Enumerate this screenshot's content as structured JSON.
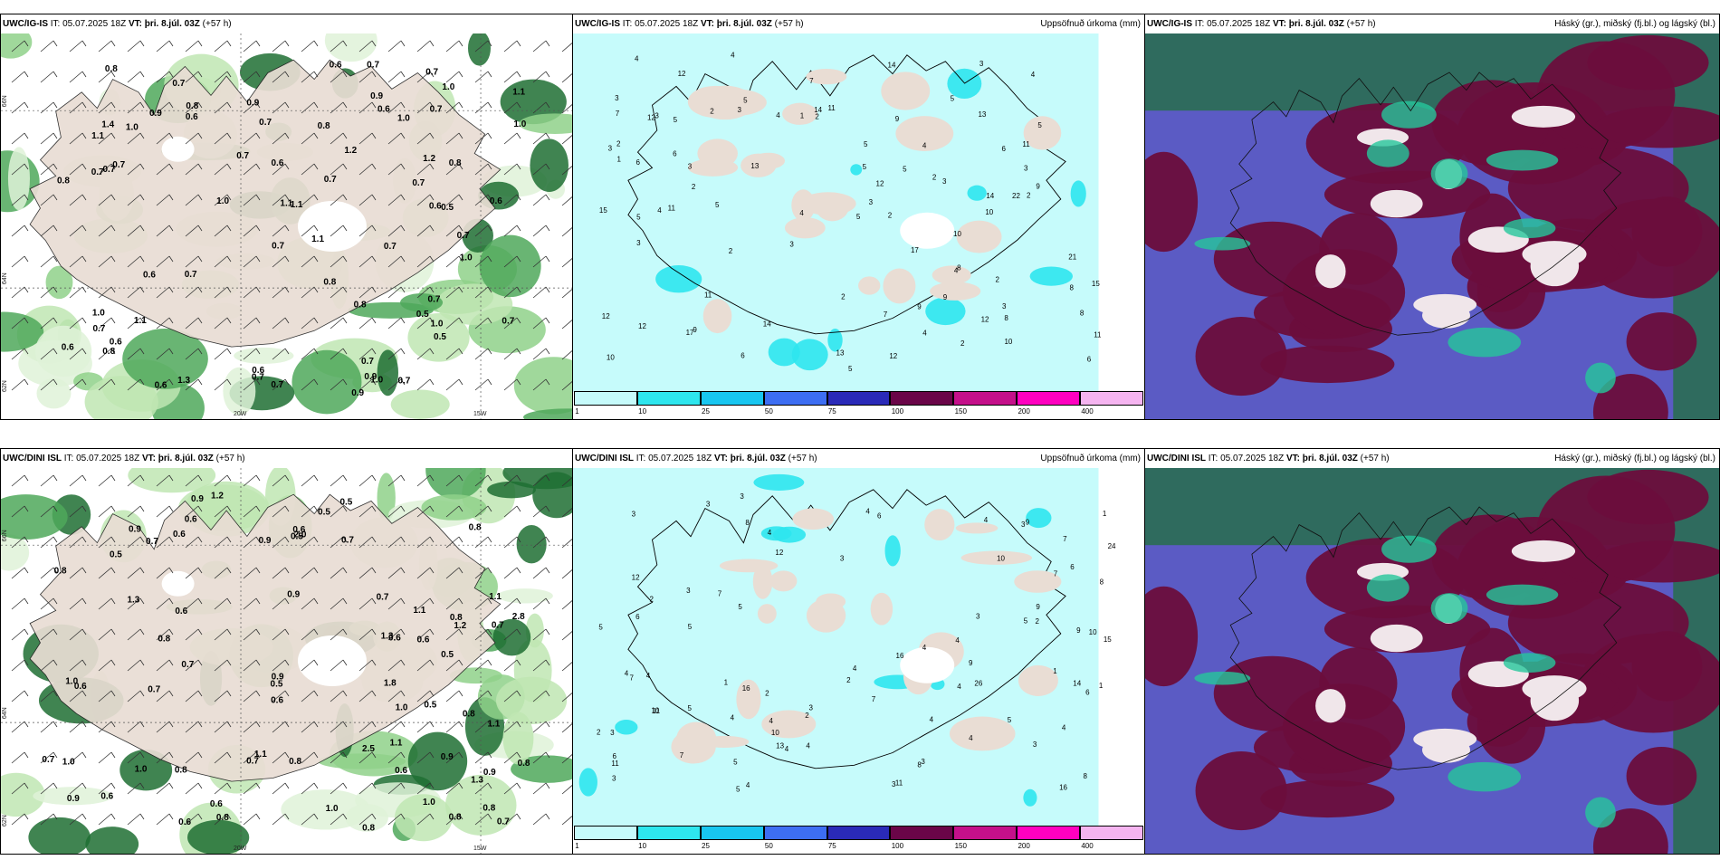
{
  "panels": [
    {
      "model": "UWC/IG-IS",
      "it_label": "IT:",
      "it": "05.07.2025 18Z",
      "vt_label": "VT:",
      "vt": "þri. 8.júl. 03Z",
      "lead": "(+57 h)",
      "right": ""
    },
    {
      "model": "UWC/IG-IS",
      "it_label": "IT:",
      "it": "05.07.2025 18Z",
      "vt_label": "VT:",
      "vt": "þri. 8.júl. 03Z",
      "lead": "(+57 h)",
      "right": "Uppsöfnuð úrkoma (mm)"
    },
    {
      "model": "UWC/IG-IS",
      "it_label": "IT:",
      "it": "05.07.2025 18Z",
      "vt_label": "VT:",
      "vt": "þri. 8.júl. 03Z",
      "lead": "(+57 h)",
      "right": "Háský (gr.), miðský (fj.bl.) og lágský (bl.)"
    },
    {
      "model": "UWC/DINI ISL",
      "it_label": "IT:",
      "it": "05.07.2025 18Z",
      "vt_label": "VT:",
      "vt": "þri. 8.júl. 03Z",
      "lead": "(+57 h)",
      "right": ""
    },
    {
      "model": "UWC/DINI ISL",
      "it_label": "IT:",
      "it": "05.07.2025 18Z",
      "vt_label": "VT:",
      "vt": "þri. 8.júl. 03Z",
      "lead": "(+57 h)",
      "right": "Uppsöfnuð úrkoma (mm)"
    },
    {
      "model": "UWC/DINI ISL",
      "it_label": "IT:",
      "it": "05.07.2025 18Z",
      "vt_label": "VT:",
      "vt": "þri. 8.júl. 03Z",
      "lead": "(+57 h)",
      "right": "Háský (gr.), miðský (fj.bl.) og lágský (bl.)"
    }
  ],
  "axes": {
    "lat_top": "66N",
    "lat_mid": "64N",
    "lat_bottom": "62N",
    "lon_left": "20W",
    "lon_right": "15W"
  },
  "precip_legend": {
    "ticks": [
      "1",
      "10",
      "25",
      "50",
      "75",
      "100",
      "150",
      "200",
      "400"
    ],
    "colors": [
      "#c6fbfb",
      "#2ee6ee",
      "#18c6f0",
      "#3d6ef2",
      "#2a2ab8",
      "#6a0548",
      "#c4108a",
      "#ff00c0",
      "#f5b4f0"
    ]
  },
  "wind_panel_values": {
    "top": [
      {
        "v": "0.7"
      },
      {
        "v": "1.2"
      },
      {
        "v": "0.9"
      },
      {
        "v": "1.1"
      },
      {
        "v": "0.7"
      },
      {
        "v": "0.8"
      },
      {
        "v": "0.5"
      },
      {
        "v": "0.7"
      },
      {
        "v": "0.9"
      },
      {
        "v": "1.0"
      },
      {
        "v": "0.6"
      },
      {
        "v": "0.7"
      },
      {
        "v": "0.6"
      },
      {
        "v": "0.7"
      },
      {
        "v": "0.6"
      },
      {
        "v": "1.1"
      },
      {
        "v": "0.7"
      },
      {
        "v": "0.8"
      },
      {
        "v": "1.4"
      },
      {
        "v": "0.7"
      },
      {
        "v": "0.6"
      },
      {
        "v": "0.6"
      },
      {
        "v": "1.0"
      },
      {
        "v": "0.7"
      },
      {
        "v": "0.9"
      },
      {
        "v": "1.1"
      },
      {
        "v": "1.0"
      },
      {
        "v": "0.9"
      },
      {
        "v": "0.8"
      },
      {
        "v": "0.7"
      },
      {
        "v": "1.0"
      },
      {
        "v": "1.1"
      },
      {
        "v": "1.0"
      },
      {
        "v": "0.7"
      },
      {
        "v": "1.0"
      },
      {
        "v": "1.3"
      },
      {
        "v": "0.9"
      },
      {
        "v": "1.0"
      },
      {
        "v": "1.1"
      },
      {
        "v": "0.8"
      },
      {
        "v": "0.7"
      },
      {
        "v": "1.0"
      },
      {
        "v": "0.6"
      },
      {
        "v": "0.7"
      },
      {
        "v": "0.8"
      },
      {
        "v": "0.5"
      },
      {
        "v": "0.6"
      },
      {
        "v": "0.7"
      },
      {
        "v": "0.6"
      },
      {
        "v": "0.8"
      },
      {
        "v": "0.8"
      },
      {
        "v": "0.7"
      },
      {
        "v": "0.7"
      },
      {
        "v": "0.6"
      },
      {
        "v": "0.5"
      },
      {
        "v": "1.2"
      },
      {
        "v": "0.7"
      },
      {
        "v": "1.1"
      },
      {
        "v": "0.7"
      },
      {
        "v": "0.7"
      },
      {
        "v": "0.6"
      },
      {
        "v": "1.0"
      },
      {
        "v": "0.8"
      },
      {
        "v": "0.7"
      },
      {
        "v": "0.6"
      },
      {
        "v": "0.7"
      },
      {
        "v": "0.7"
      },
      {
        "v": "0.7"
      }
    ],
    "bottom": [
      {
        "v": "0.9"
      },
      {
        "v": "1.1"
      },
      {
        "v": "0.9"
      },
      {
        "v": "0.9"
      },
      {
        "v": "0.9"
      },
      {
        "v": "0.6"
      },
      {
        "v": "0.8"
      },
      {
        "v": "0.8"
      },
      {
        "v": "0.8"
      },
      {
        "v": "1.3"
      },
      {
        "v": "0.7"
      },
      {
        "v": "0.8"
      },
      {
        "v": "0.5"
      },
      {
        "v": "0.8"
      },
      {
        "v": "1.0"
      },
      {
        "v": "0.5"
      },
      {
        "v": "1.3"
      },
      {
        "v": "0.6"
      },
      {
        "v": "1.1"
      },
      {
        "v": "1.2"
      },
      {
        "v": "1.0"
      },
      {
        "v": "0.6"
      },
      {
        "v": "1.0"
      },
      {
        "v": "1.3"
      },
      {
        "v": "0.6"
      },
      {
        "v": "0.7"
      },
      {
        "v": "0.5"
      },
      {
        "v": "0.7"
      },
      {
        "v": "0.7"
      },
      {
        "v": "0.8"
      },
      {
        "v": "0.7"
      },
      {
        "v": "0.6"
      },
      {
        "v": "0.6"
      },
      {
        "v": "0.5"
      },
      {
        "v": "0.8"
      },
      {
        "v": "1.0"
      },
      {
        "v": "0.6"
      },
      {
        "v": "0.9"
      },
      {
        "v": "0.8"
      },
      {
        "v": "0.7"
      },
      {
        "v": "0.5"
      },
      {
        "v": "0.6"
      },
      {
        "v": "0.5"
      },
      {
        "v": "0.8"
      },
      {
        "v": "1.1"
      },
      {
        "v": "1.0"
      },
      {
        "v": "0.6"
      },
      {
        "v": "0.5"
      },
      {
        "v": "0.6"
      },
      {
        "v": "1.1"
      },
      {
        "v": "1.0"
      },
      {
        "v": "0.6"
      },
      {
        "v": "2.0"
      },
      {
        "v": "2.8"
      },
      {
        "v": "2.5"
      },
      {
        "v": "1.8"
      },
      {
        "v": "0.9"
      },
      {
        "v": "0.9"
      },
      {
        "v": "0.8"
      },
      {
        "v": "0.6"
      },
      {
        "v": "1.2"
      },
      {
        "v": "1.1"
      },
      {
        "v": "0.7"
      },
      {
        "v": "0.8"
      },
      {
        "v": "0.7"
      },
      {
        "v": "0.8"
      },
      {
        "v": "0.7"
      },
      {
        "v": "0.9"
      }
    ]
  },
  "precip_panel_values": {
    "top": [
      {
        "v": "5"
      },
      {
        "v": "8"
      },
      {
        "v": "3"
      },
      {
        "v": "11"
      },
      {
        "v": "13"
      },
      {
        "v": "11"
      },
      {
        "v": "12"
      },
      {
        "v": "5"
      },
      {
        "v": "2"
      },
      {
        "v": "3"
      },
      {
        "v": "3"
      },
      {
        "v": "9"
      },
      {
        "v": "10"
      },
      {
        "v": "12"
      },
      {
        "v": "11"
      },
      {
        "v": "13"
      },
      {
        "v": "15"
      },
      {
        "v": "9"
      },
      {
        "v": "7"
      },
      {
        "v": "8"
      },
      {
        "v": "7"
      },
      {
        "v": "2"
      },
      {
        "v": "2"
      },
      {
        "v": "4"
      },
      {
        "v": "3"
      },
      {
        "v": "5"
      },
      {
        "v": "4"
      },
      {
        "v": "6"
      },
      {
        "v": "3"
      },
      {
        "v": "7"
      },
      {
        "v": "17"
      },
      {
        "v": "4"
      },
      {
        "v": "3"
      },
      {
        "v": "2"
      },
      {
        "v": "2"
      },
      {
        "v": "1"
      },
      {
        "v": "4"
      },
      {
        "v": "3"
      },
      {
        "v": "2"
      },
      {
        "v": "10"
      },
      {
        "v": "5"
      },
      {
        "v": "15"
      },
      {
        "v": "14"
      },
      {
        "v": "6"
      },
      {
        "v": "4"
      },
      {
        "v": "5"
      },
      {
        "v": "8"
      },
      {
        "v": "21"
      },
      {
        "v": "14"
      },
      {
        "v": "22"
      },
      {
        "v": "9"
      },
      {
        "v": "5"
      },
      {
        "v": "2"
      },
      {
        "v": "6"
      },
      {
        "v": "4"
      },
      {
        "v": "5"
      },
      {
        "v": "2"
      },
      {
        "v": "2"
      },
      {
        "v": "3"
      },
      {
        "v": "5"
      },
      {
        "v": "4"
      },
      {
        "v": "6"
      },
      {
        "v": "5"
      },
      {
        "v": "4"
      },
      {
        "v": "12"
      },
      {
        "v": "12"
      },
      {
        "v": "11"
      },
      {
        "v": "12"
      },
      {
        "v": "13"
      },
      {
        "v": "10"
      },
      {
        "v": "9"
      },
      {
        "v": "4"
      },
      {
        "v": "3"
      },
      {
        "v": "2"
      },
      {
        "v": "1"
      },
      {
        "v": "14"
      },
      {
        "v": "11"
      },
      {
        "v": "5"
      },
      {
        "v": "17"
      },
      {
        "v": "12"
      },
      {
        "v": "12"
      },
      {
        "v": "14"
      },
      {
        "v": "10"
      },
      {
        "v": "8"
      },
      {
        "v": "9"
      },
      {
        "v": "3"
      },
      {
        "v": "5"
      },
      {
        "v": "3"
      },
      {
        "v": "6"
      },
      {
        "v": "2"
      },
      {
        "v": "3"
      }
    ],
    "bottom": [
      {
        "v": "7"
      },
      {
        "v": "11"
      },
      {
        "v": "12"
      },
      {
        "v": "13"
      },
      {
        "v": "14"
      },
      {
        "v": "10"
      },
      {
        "v": "16"
      },
      {
        "v": "16"
      },
      {
        "v": "7"
      },
      {
        "v": "3"
      },
      {
        "v": "4"
      },
      {
        "v": "3"
      },
      {
        "v": "4"
      },
      {
        "v": "8"
      },
      {
        "v": "1"
      },
      {
        "v": "2"
      },
      {
        "v": "1"
      },
      {
        "v": "7"
      },
      {
        "v": "10"
      },
      {
        "v": "9"
      },
      {
        "v": "7"
      },
      {
        "v": "9"
      },
      {
        "v": "8"
      },
      {
        "v": "26"
      },
      {
        "v": "24"
      },
      {
        "v": "16"
      },
      {
        "v": "7"
      },
      {
        "v": "6"
      },
      {
        "v": "4"
      },
      {
        "v": "4"
      },
      {
        "v": "6"
      },
      {
        "v": "5"
      },
      {
        "v": "4"
      },
      {
        "v": "3"
      },
      {
        "v": "2"
      },
      {
        "v": "8"
      },
      {
        "v": "4"
      },
      {
        "v": "4"
      },
      {
        "v": "2"
      },
      {
        "v": "1"
      },
      {
        "v": "3"
      },
      {
        "v": "5"
      },
      {
        "v": "4"
      },
      {
        "v": "6"
      },
      {
        "v": "5"
      },
      {
        "v": "8"
      },
      {
        "v": "10"
      },
      {
        "v": "11"
      },
      {
        "v": "9"
      },
      {
        "v": "12"
      },
      {
        "v": "10"
      },
      {
        "v": "5"
      },
      {
        "v": "4"
      },
      {
        "v": "3"
      },
      {
        "v": "2"
      },
      {
        "v": "4"
      },
      {
        "v": "3"
      },
      {
        "v": "5"
      },
      {
        "v": "15"
      },
      {
        "v": "4"
      },
      {
        "v": "5"
      },
      {
        "v": "3"
      },
      {
        "v": "4"
      },
      {
        "v": "2"
      },
      {
        "v": "1"
      },
      {
        "v": "3"
      },
      {
        "v": "11"
      },
      {
        "v": "7"
      },
      {
        "v": "9"
      },
      {
        "v": "5"
      },
      {
        "v": "4"
      },
      {
        "v": "3"
      },
      {
        "v": "4"
      },
      {
        "v": "6"
      },
      {
        "v": "4"
      },
      {
        "v": "3"
      },
      {
        "v": "2"
      },
      {
        "v": "3"
      },
      {
        "v": "5"
      },
      {
        "v": "3"
      },
      {
        "v": "4"
      },
      {
        "v": "6"
      },
      {
        "v": "3"
      },
      {
        "v": "4"
      }
    ]
  },
  "colors": {
    "land": "#e9ddd4",
    "sea": "#ffffff",
    "precip_light": "#c6fbfb",
    "cloud_high": "#6b0e3c",
    "cloud_mid": "#5b5bc4",
    "cloud_low": "#2f6b5e"
  }
}
